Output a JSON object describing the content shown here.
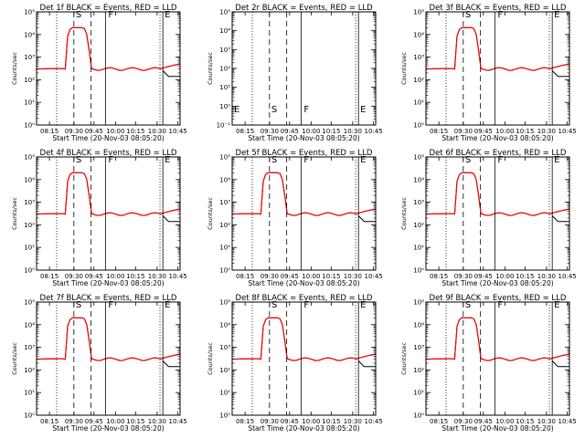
{
  "chart_data": [
    {
      "type": "line",
      "title": "Det 1f  BLACK = Events, RED = LLD",
      "xlabel": "Start Time (20-Nov-03 08:05:20)",
      "ylabel": "Counts/sec",
      "x_ticks": [
        "08:15",
        "09:30",
        "09:45",
        "10:00",
        "10:15",
        "10:30",
        "10:45"
      ],
      "y_ticks": [
        "10⁰",
        "10¹",
        "10²",
        "10³",
        "10⁴",
        "10⁵"
      ],
      "xlim": [
        "08:05",
        "10:45"
      ],
      "ylim": [
        1,
        100000
      ],
      "yscale": "log",
      "grid": false,
      "markers": [
        "S",
        "F",
        "E"
      ],
      "has_data": true,
      "colors": {
        "events": "#000000",
        "lld": "#ff0000"
      }
    },
    {
      "type": "line",
      "title": "Det 2r  BLACK = Events, RED = LLD",
      "xlabel": "Start Time (20-Nov-03 08:05:20)",
      "ylabel": "Counts/sec",
      "x_ticks": [
        "08:15",
        "09:30",
        "09:45",
        "10:00",
        "10:15",
        "10:30",
        "10:45"
      ],
      "y_ticks": [
        "10⁻¹",
        "10⁰",
        "10¹",
        "10²",
        "10³",
        "10⁴",
        "10⁵"
      ],
      "xlim": [
        "08:05",
        "10:45"
      ],
      "ylim": [
        0.1,
        100000
      ],
      "yscale": "log",
      "grid": false,
      "markers": [
        "E",
        "S",
        "F",
        "E"
      ],
      "has_data": false,
      "colors": {
        "events": "#000000",
        "lld": "#ff0000"
      }
    },
    {
      "type": "line",
      "title": "Det 3f  BLACK = Events, RED = LLD",
      "xlabel": "Start Time (20-Nov-03 08:05:20)",
      "ylabel": "Counts/sec",
      "x_ticks": [
        "08:15",
        "09:30",
        "09:45",
        "10:00",
        "10:15",
        "10:30",
        "10:45"
      ],
      "y_ticks": [
        "10⁰",
        "10¹",
        "10²",
        "10³",
        "10⁴",
        "10⁵"
      ],
      "xlim": [
        "08:05",
        "10:45"
      ],
      "ylim": [
        1,
        100000
      ],
      "yscale": "log",
      "grid": false,
      "markers": [
        "S",
        "F",
        "E"
      ],
      "has_data": true,
      "colors": {
        "events": "#000000",
        "lld": "#ff0000"
      }
    },
    {
      "type": "line",
      "title": "Det 4f  BLACK = Events, RED = LLD",
      "xlabel": "Start Time (20-Nov-03 08:05:20)",
      "ylabel": "Counts/sec",
      "x_ticks": [
        "08:15",
        "09:30",
        "09:45",
        "10:00",
        "10:15",
        "10:30",
        "10:45"
      ],
      "y_ticks": [
        "10⁰",
        "10¹",
        "10²",
        "10³",
        "10⁴",
        "10⁵"
      ],
      "xlim": [
        "08:05",
        "10:45"
      ],
      "ylim": [
        1,
        100000
      ],
      "yscale": "log",
      "grid": false,
      "markers": [
        "S",
        "F",
        "E"
      ],
      "has_data": true,
      "colors": {
        "events": "#000000",
        "lld": "#ff0000"
      }
    },
    {
      "type": "line",
      "title": "Det 5f  BLACK = Events, RED = LLD",
      "xlabel": "Start Time (20-Nov-03 08:05:20)",
      "ylabel": "Counts/sec",
      "x_ticks": [
        "08:15",
        "09:30",
        "09:45",
        "10:00",
        "10:15",
        "10:30",
        "10:45"
      ],
      "y_ticks": [
        "10⁰",
        "10¹",
        "10²",
        "10³",
        "10⁴",
        "10⁵"
      ],
      "xlim": [
        "08:05",
        "10:45"
      ],
      "ylim": [
        1,
        100000
      ],
      "yscale": "log",
      "grid": false,
      "markers": [
        "S",
        "F",
        "E"
      ],
      "has_data": true,
      "colors": {
        "events": "#000000",
        "lld": "#ff0000"
      }
    },
    {
      "type": "line",
      "title": "Det 6f  BLACK = Events, RED = LLD",
      "xlabel": "Start Time (20-Nov-03 08:05:20)",
      "ylabel": "Counts/sec",
      "x_ticks": [
        "08:15",
        "09:30",
        "09:45",
        "10:00",
        "10:15",
        "10:30",
        "10:45"
      ],
      "y_ticks": [
        "10⁰",
        "10¹",
        "10²",
        "10³",
        "10⁴",
        "10⁵"
      ],
      "xlim": [
        "08:05",
        "10:45"
      ],
      "ylim": [
        1,
        100000
      ],
      "yscale": "log",
      "grid": false,
      "markers": [
        "S",
        "F",
        "E"
      ],
      "has_data": true,
      "colors": {
        "events": "#000000",
        "lld": "#ff0000"
      }
    },
    {
      "type": "line",
      "title": "Det 7f  BLACK = Events, RED = LLD",
      "xlabel": "Start Time (20-Nov-03 08:05:20)",
      "ylabel": "Counts/sec",
      "x_ticks": [
        "08:15",
        "09:30",
        "09:45",
        "10:00",
        "10:15",
        "10:30",
        "10:45"
      ],
      "y_ticks": [
        "10⁰",
        "10¹",
        "10²",
        "10³",
        "10⁴",
        "10⁵"
      ],
      "xlim": [
        "08:05",
        "10:45"
      ],
      "ylim": [
        1,
        100000
      ],
      "yscale": "log",
      "grid": false,
      "markers": [
        "S",
        "F",
        "E"
      ],
      "has_data": true,
      "colors": {
        "events": "#000000",
        "lld": "#ff0000"
      }
    },
    {
      "type": "line",
      "title": "Det 8f  BLACK = Events, RED = LLD",
      "xlabel": "Start Time (20-Nov-03 08:05:20)",
      "ylabel": "Counts/sec",
      "x_ticks": [
        "08:15",
        "09:30",
        "09:45",
        "10:00",
        "10:15",
        "10:30",
        "10:45"
      ],
      "y_ticks": [
        "10⁰",
        "10¹",
        "10²",
        "10³",
        "10⁴",
        "10⁵"
      ],
      "xlim": [
        "08:05",
        "10:45"
      ],
      "ylim": [
        1,
        100000
      ],
      "yscale": "log",
      "grid": false,
      "markers": [
        "S",
        "F",
        "E"
      ],
      "has_data": true,
      "colors": {
        "events": "#000000",
        "lld": "#ff0000"
      }
    },
    {
      "type": "line",
      "title": "Det 9f  BLACK = Events, RED = LLD",
      "xlabel": "Start Time (20-Nov-03 08:05:20)",
      "ylabel": "Counts/sec",
      "x_ticks": [
        "08:15",
        "09:30",
        "09:45",
        "10:00",
        "10:15",
        "10:30",
        "10:45"
      ],
      "y_ticks": [
        "10⁰",
        "10¹",
        "10²",
        "10³",
        "10⁴",
        "10⁵"
      ],
      "xlim": [
        "08:05",
        "10:45"
      ],
      "ylim": [
        1,
        100000
      ],
      "yscale": "log",
      "grid": false,
      "markers": [
        "S",
        "F",
        "E"
      ],
      "has_data": true,
      "colors": {
        "events": "#000000",
        "lld": "#ff0000"
      }
    }
  ]
}
